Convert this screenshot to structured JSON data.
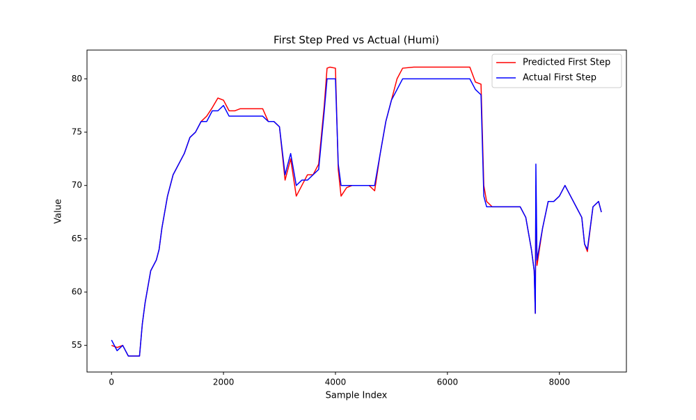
{
  "chart_data": {
    "type": "line",
    "title": "First Step Pred vs Actual (Humi)",
    "x_label": "Sample Index",
    "y_label": "Value",
    "x": [
      0,
      100,
      200,
      300,
      400,
      500,
      550,
      600,
      700,
      800,
      850,
      900,
      1000,
      1100,
      1200,
      1300,
      1400,
      1500,
      1600,
      1700,
      1800,
      1900,
      2000,
      2100,
      2200,
      2300,
      2400,
      2500,
      2600,
      2700,
      2800,
      2900,
      3000,
      3100,
      3200,
      3300,
      3400,
      3500,
      3600,
      3700,
      3800,
      3850,
      3900,
      4000,
      4050,
      4100,
      4200,
      4300,
      4400,
      4500,
      4600,
      4700,
      4800,
      4900,
      5000,
      5100,
      5200,
      5400,
      5600,
      5800,
      6000,
      6200,
      6400,
      6500,
      6600,
      6650,
      6700,
      6800,
      6900,
      7000,
      7100,
      7200,
      7300,
      7400,
      7500,
      7550,
      7570,
      7580,
      7600,
      7700,
      7800,
      7900,
      8000,
      8100,
      8200,
      8300,
      8400,
      8450,
      8500,
      8600,
      8700,
      8750
    ],
    "series": [
      {
        "name": "Predicted First Step",
        "color": "#ff0000",
        "values": [
          55,
          54.8,
          55,
          54,
          54,
          54,
          57,
          59,
          62,
          63,
          64,
          66,
          69,
          71,
          72,
          73,
          74.5,
          75,
          76,
          76.5,
          77.3,
          78.2,
          78,
          77,
          77,
          77.2,
          77.2,
          77.2,
          77.2,
          77.2,
          76,
          76,
          75.5,
          70.5,
          72.5,
          69,
          70,
          71,
          71,
          72,
          77.5,
          81,
          81.1,
          81,
          71.5,
          69,
          69.8,
          70,
          70,
          70,
          70,
          69.5,
          73,
          76,
          78,
          80,
          81,
          81.1,
          81.1,
          81.1,
          81.1,
          81.1,
          81.1,
          79.7,
          79.5,
          70,
          68.5,
          68,
          68,
          68,
          68,
          68,
          68,
          67,
          64,
          62,
          58,
          70,
          62.5,
          66,
          68.5,
          68.5,
          69,
          70,
          69,
          68,
          67,
          64.5,
          63.8,
          68,
          68.5,
          67.5
        ]
      },
      {
        "name": "Actual First Step",
        "color": "#0000ff",
        "values": [
          55.5,
          54.5,
          55,
          54,
          54,
          54,
          57,
          59,
          62,
          63,
          64,
          66,
          69,
          71,
          72,
          73,
          74.5,
          75,
          76,
          76,
          77,
          77,
          77.5,
          76.5,
          76.5,
          76.5,
          76.5,
          76.5,
          76.5,
          76.5,
          76,
          76,
          75.5,
          71,
          73,
          70,
          70.5,
          70.5,
          71,
          71.5,
          77,
          80,
          80,
          80,
          72,
          70,
          70,
          70,
          70,
          70,
          70,
          70,
          73,
          76,
          78,
          79,
          80,
          80,
          80,
          80,
          80,
          80,
          80,
          79,
          78.5,
          69,
          68,
          68,
          68,
          68,
          68,
          68,
          68,
          67,
          64,
          62,
          58,
          72,
          63,
          66,
          68.5,
          68.5,
          69,
          70,
          69,
          68,
          67,
          64.5,
          64,
          68,
          68.5,
          67.5
        ]
      }
    ],
    "xlim": [
      -438,
      9197
    ],
    "ylim": [
      52.5,
      82.7
    ],
    "xticks": [
      0,
      2000,
      4000,
      6000,
      8000
    ],
    "yticks": [
      55,
      60,
      65,
      70,
      75,
      80
    ],
    "legend": "upper right"
  }
}
